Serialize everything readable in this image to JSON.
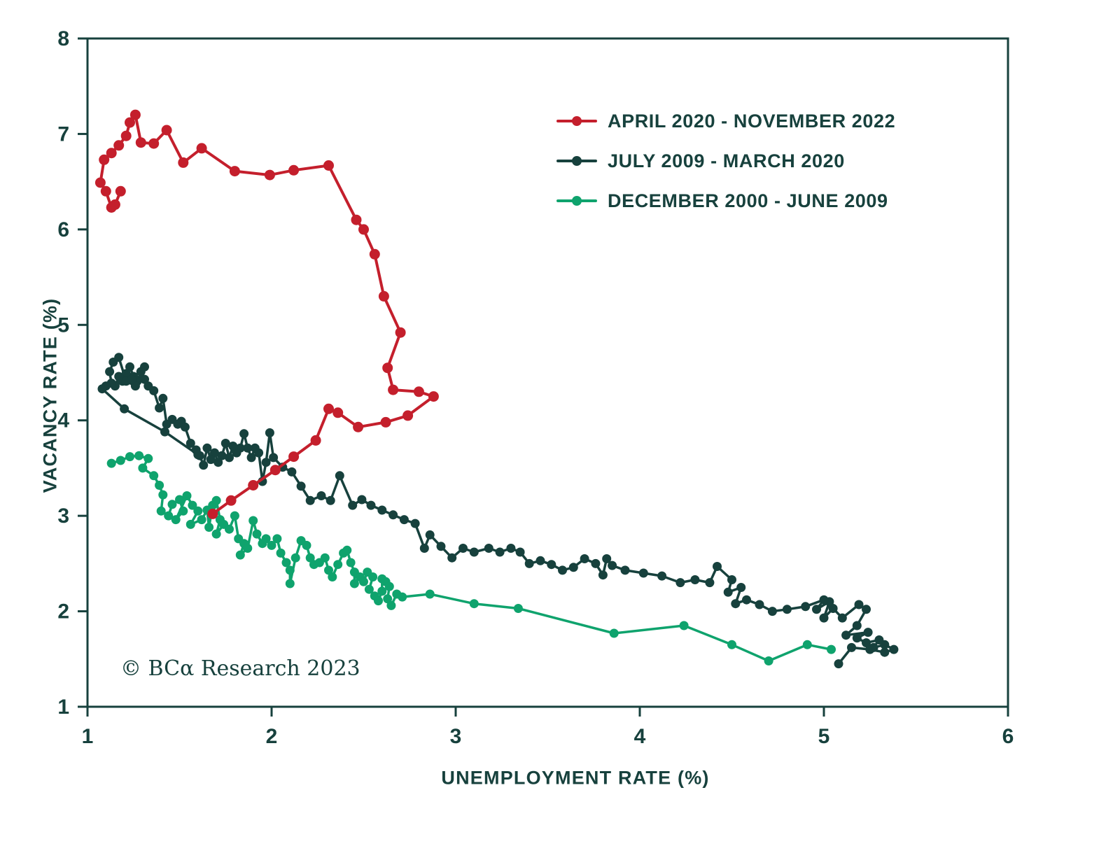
{
  "copyright": "© BCα Research 2023",
  "chart_data": {
    "type": "scatter",
    "title": "",
    "xlabel": "UNEMPLOYMENT RATE (%)",
    "ylabel": "VACANCY RATE (%)",
    "xlim": [
      1,
      6
    ],
    "ylim": [
      1,
      8
    ],
    "xticks": [
      1,
      2,
      3,
      4,
      5,
      6
    ],
    "yticks": [
      1,
      2,
      3,
      4,
      5,
      6,
      7,
      8
    ],
    "grid": false,
    "legend_position": "upper-right-inside",
    "axis_color": "#17413d",
    "background": "#ffffff",
    "series": [
      {
        "name": "APRIL 2020 - NOVEMBER 2022",
        "color": "#c41f2c",
        "line_width": 4,
        "marker_size": 7.5,
        "points": [
          [
            1.68,
            3.02
          ],
          [
            1.78,
            3.16
          ],
          [
            1.9,
            3.32
          ],
          [
            2.02,
            3.48
          ],
          [
            2.12,
            3.62
          ],
          [
            2.24,
            3.79
          ],
          [
            2.31,
            4.12
          ],
          [
            2.36,
            4.08
          ],
          [
            2.47,
            3.93
          ],
          [
            2.62,
            3.98
          ],
          [
            2.74,
            4.05
          ],
          [
            2.88,
            4.25
          ],
          [
            2.8,
            4.3
          ],
          [
            2.66,
            4.32
          ],
          [
            2.63,
            4.55
          ],
          [
            2.7,
            4.92
          ],
          [
            2.61,
            5.3
          ],
          [
            2.56,
            5.74
          ],
          [
            2.5,
            6.0
          ],
          [
            2.46,
            6.1
          ],
          [
            2.31,
            6.67
          ],
          [
            2.12,
            6.62
          ],
          [
            1.99,
            6.57
          ],
          [
            1.8,
            6.61
          ],
          [
            1.62,
            6.85
          ],
          [
            1.52,
            6.7
          ],
          [
            1.43,
            7.04
          ],
          [
            1.36,
            6.9
          ],
          [
            1.29,
            6.91
          ],
          [
            1.26,
            7.2
          ],
          [
            1.23,
            7.12
          ],
          [
            1.21,
            6.98
          ],
          [
            1.17,
            6.88
          ],
          [
            1.13,
            6.8
          ],
          [
            1.09,
            6.73
          ],
          [
            1.07,
            6.49
          ],
          [
            1.1,
            6.4
          ],
          [
            1.13,
            6.23
          ],
          [
            1.15,
            6.26
          ],
          [
            1.18,
            6.4
          ]
        ]
      },
      {
        "name": "JULY 2009 - MARCH 2020",
        "color": "#17413d",
        "line_width": 3.5,
        "marker_size": 6.5,
        "points": [
          [
            5.08,
            1.45
          ],
          [
            5.15,
            1.62
          ],
          [
            5.25,
            1.6
          ],
          [
            5.33,
            1.57
          ],
          [
            5.38,
            1.6
          ],
          [
            5.33,
            1.65
          ],
          [
            5.27,
            1.62
          ],
          [
            5.3,
            1.7
          ],
          [
            5.23,
            1.67
          ],
          [
            5.18,
            1.72
          ],
          [
            5.24,
            1.78
          ],
          [
            5.12,
            1.75
          ],
          [
            5.18,
            1.85
          ],
          [
            5.23,
            2.02
          ],
          [
            5.19,
            2.07
          ],
          [
            5.1,
            1.93
          ],
          [
            5.05,
            2.03
          ],
          [
            5.0,
            1.93
          ],
          [
            5.03,
            2.1
          ],
          [
            4.96,
            2.02
          ],
          [
            5.0,
            2.12
          ],
          [
            4.9,
            2.05
          ],
          [
            4.8,
            2.02
          ],
          [
            4.72,
            2.0
          ],
          [
            4.65,
            2.07
          ],
          [
            4.58,
            2.12
          ],
          [
            4.52,
            2.08
          ],
          [
            4.55,
            2.25
          ],
          [
            4.48,
            2.2
          ],
          [
            4.5,
            2.33
          ],
          [
            4.42,
            2.47
          ],
          [
            4.38,
            2.3
          ],
          [
            4.3,
            2.33
          ],
          [
            4.22,
            2.3
          ],
          [
            4.12,
            2.37
          ],
          [
            4.02,
            2.4
          ],
          [
            3.92,
            2.43
          ],
          [
            3.85,
            2.48
          ],
          [
            3.82,
            2.55
          ],
          [
            3.8,
            2.38
          ],
          [
            3.76,
            2.5
          ],
          [
            3.7,
            2.55
          ],
          [
            3.64,
            2.46
          ],
          [
            3.58,
            2.43
          ],
          [
            3.52,
            2.49
          ],
          [
            3.46,
            2.53
          ],
          [
            3.4,
            2.5
          ],
          [
            3.35,
            2.62
          ],
          [
            3.3,
            2.66
          ],
          [
            3.24,
            2.62
          ],
          [
            3.18,
            2.66
          ],
          [
            3.1,
            2.62
          ],
          [
            3.04,
            2.66
          ],
          [
            2.98,
            2.56
          ],
          [
            2.92,
            2.68
          ],
          [
            2.86,
            2.8
          ],
          [
            2.83,
            2.66
          ],
          [
            2.78,
            2.92
          ],
          [
            2.72,
            2.96
          ],
          [
            2.66,
            3.01
          ],
          [
            2.6,
            3.06
          ],
          [
            2.54,
            3.11
          ],
          [
            2.49,
            3.17
          ],
          [
            2.44,
            3.11
          ],
          [
            2.37,
            3.42
          ],
          [
            2.32,
            3.16
          ],
          [
            2.27,
            3.21
          ],
          [
            2.21,
            3.16
          ],
          [
            2.16,
            3.31
          ],
          [
            2.11,
            3.46
          ],
          [
            2.06,
            3.51
          ],
          [
            2.01,
            3.61
          ],
          [
            1.99,
            3.87
          ],
          [
            1.97,
            3.56
          ],
          [
            1.95,
            3.36
          ],
          [
            1.93,
            3.66
          ],
          [
            1.91,
            3.71
          ],
          [
            1.89,
            3.61
          ],
          [
            1.87,
            3.71
          ],
          [
            1.85,
            3.86
          ],
          [
            1.83,
            3.71
          ],
          [
            1.81,
            3.66
          ],
          [
            1.79,
            3.73
          ],
          [
            1.77,
            3.61
          ],
          [
            1.75,
            3.76
          ],
          [
            1.73,
            3.63
          ],
          [
            1.71,
            3.56
          ],
          [
            1.69,
            3.66
          ],
          [
            1.67,
            3.59
          ],
          [
            1.65,
            3.71
          ],
          [
            1.63,
            3.53
          ],
          [
            1.61,
            3.63
          ],
          [
            1.59,
            3.69
          ],
          [
            1.56,
            3.76
          ],
          [
            1.53,
            3.93
          ],
          [
            1.51,
            3.99
          ],
          [
            1.49,
            3.96
          ],
          [
            1.46,
            4.01
          ],
          [
            1.43,
            3.96
          ],
          [
            1.41,
            4.23
          ],
          [
            1.39,
            4.13
          ],
          [
            1.36,
            4.31
          ],
          [
            1.33,
            4.36
          ],
          [
            1.31,
            4.43
          ],
          [
            1.29,
            4.51
          ],
          [
            1.27,
            4.41
          ],
          [
            1.25,
            4.46
          ],
          [
            1.23,
            4.56
          ],
          [
            1.21,
            4.49
          ],
          [
            1.19,
            4.41
          ],
          [
            1.17,
            4.46
          ],
          [
            1.15,
            4.36
          ],
          [
            1.13,
            4.39
          ],
          [
            1.12,
            4.51
          ],
          [
            1.14,
            4.61
          ],
          [
            1.17,
            4.66
          ],
          [
            1.21,
            4.41
          ],
          [
            1.26,
            4.36
          ],
          [
            1.31,
            4.56
          ],
          [
            1.24,
            4.43
          ],
          [
            1.1,
            4.36
          ],
          [
            1.08,
            4.33
          ],
          [
            1.2,
            4.12
          ],
          [
            1.42,
            3.88
          ],
          [
            1.6,
            3.64
          ]
        ]
      },
      {
        "name": "DECEMBER 2000 - JUNE 2009",
        "color": "#0fa36d",
        "line_width": 3.5,
        "marker_size": 6.5,
        "points": [
          [
            1.13,
            3.55
          ],
          [
            1.18,
            3.58
          ],
          [
            1.23,
            3.62
          ],
          [
            1.28,
            3.63
          ],
          [
            1.33,
            3.6
          ],
          [
            1.3,
            3.5
          ],
          [
            1.36,
            3.42
          ],
          [
            1.39,
            3.32
          ],
          [
            1.41,
            3.22
          ],
          [
            1.4,
            3.05
          ],
          [
            1.44,
            3.0
          ],
          [
            1.46,
            3.12
          ],
          [
            1.5,
            3.17
          ],
          [
            1.52,
            3.05
          ],
          [
            1.48,
            2.96
          ],
          [
            1.54,
            3.21
          ],
          [
            1.57,
            3.11
          ],
          [
            1.6,
            3.05
          ],
          [
            1.56,
            2.91
          ],
          [
            1.62,
            2.96
          ],
          [
            1.65,
            3.06
          ],
          [
            1.66,
            2.88
          ],
          [
            1.68,
            3.11
          ],
          [
            1.7,
            3.16
          ],
          [
            1.72,
            2.96
          ],
          [
            1.7,
            2.81
          ],
          [
            1.74,
            2.91
          ],
          [
            1.77,
            2.86
          ],
          [
            1.8,
            3.0
          ],
          [
            1.82,
            2.76
          ],
          [
            1.85,
            2.71
          ],
          [
            1.83,
            2.59
          ],
          [
            1.87,
            2.66
          ],
          [
            1.9,
            2.95
          ],
          [
            1.92,
            2.81
          ],
          [
            1.95,
            2.71
          ],
          [
            1.97,
            2.76
          ],
          [
            2.0,
            2.69
          ],
          [
            2.03,
            2.76
          ],
          [
            2.05,
            2.61
          ],
          [
            2.08,
            2.51
          ],
          [
            2.1,
            2.43
          ],
          [
            2.1,
            2.29
          ],
          [
            2.13,
            2.56
          ],
          [
            2.16,
            2.74
          ],
          [
            2.19,
            2.69
          ],
          [
            2.21,
            2.56
          ],
          [
            2.23,
            2.49
          ],
          [
            2.26,
            2.51
          ],
          [
            2.29,
            2.56
          ],
          [
            2.31,
            2.43
          ],
          [
            2.33,
            2.36
          ],
          [
            2.36,
            2.49
          ],
          [
            2.39,
            2.61
          ],
          [
            2.41,
            2.64
          ],
          [
            2.43,
            2.51
          ],
          [
            2.45,
            2.41
          ],
          [
            2.45,
            2.29
          ],
          [
            2.48,
            2.36
          ],
          [
            2.5,
            2.31
          ],
          [
            2.52,
            2.41
          ],
          [
            2.55,
            2.36
          ],
          [
            2.53,
            2.23
          ],
          [
            2.56,
            2.16
          ],
          [
            2.58,
            2.11
          ],
          [
            2.6,
            2.21
          ],
          [
            2.6,
            2.34
          ],
          [
            2.62,
            2.31
          ],
          [
            2.64,
            2.26
          ],
          [
            2.63,
            2.13
          ],
          [
            2.65,
            2.06
          ],
          [
            2.68,
            2.18
          ],
          [
            2.71,
            2.15
          ],
          [
            2.86,
            2.18
          ],
          [
            3.1,
            2.08
          ],
          [
            3.34,
            2.03
          ],
          [
            3.86,
            1.77
          ],
          [
            4.24,
            1.85
          ],
          [
            4.5,
            1.65
          ],
          [
            4.7,
            1.48
          ],
          [
            4.91,
            1.65
          ],
          [
            5.04,
            1.6
          ]
        ]
      }
    ]
  }
}
